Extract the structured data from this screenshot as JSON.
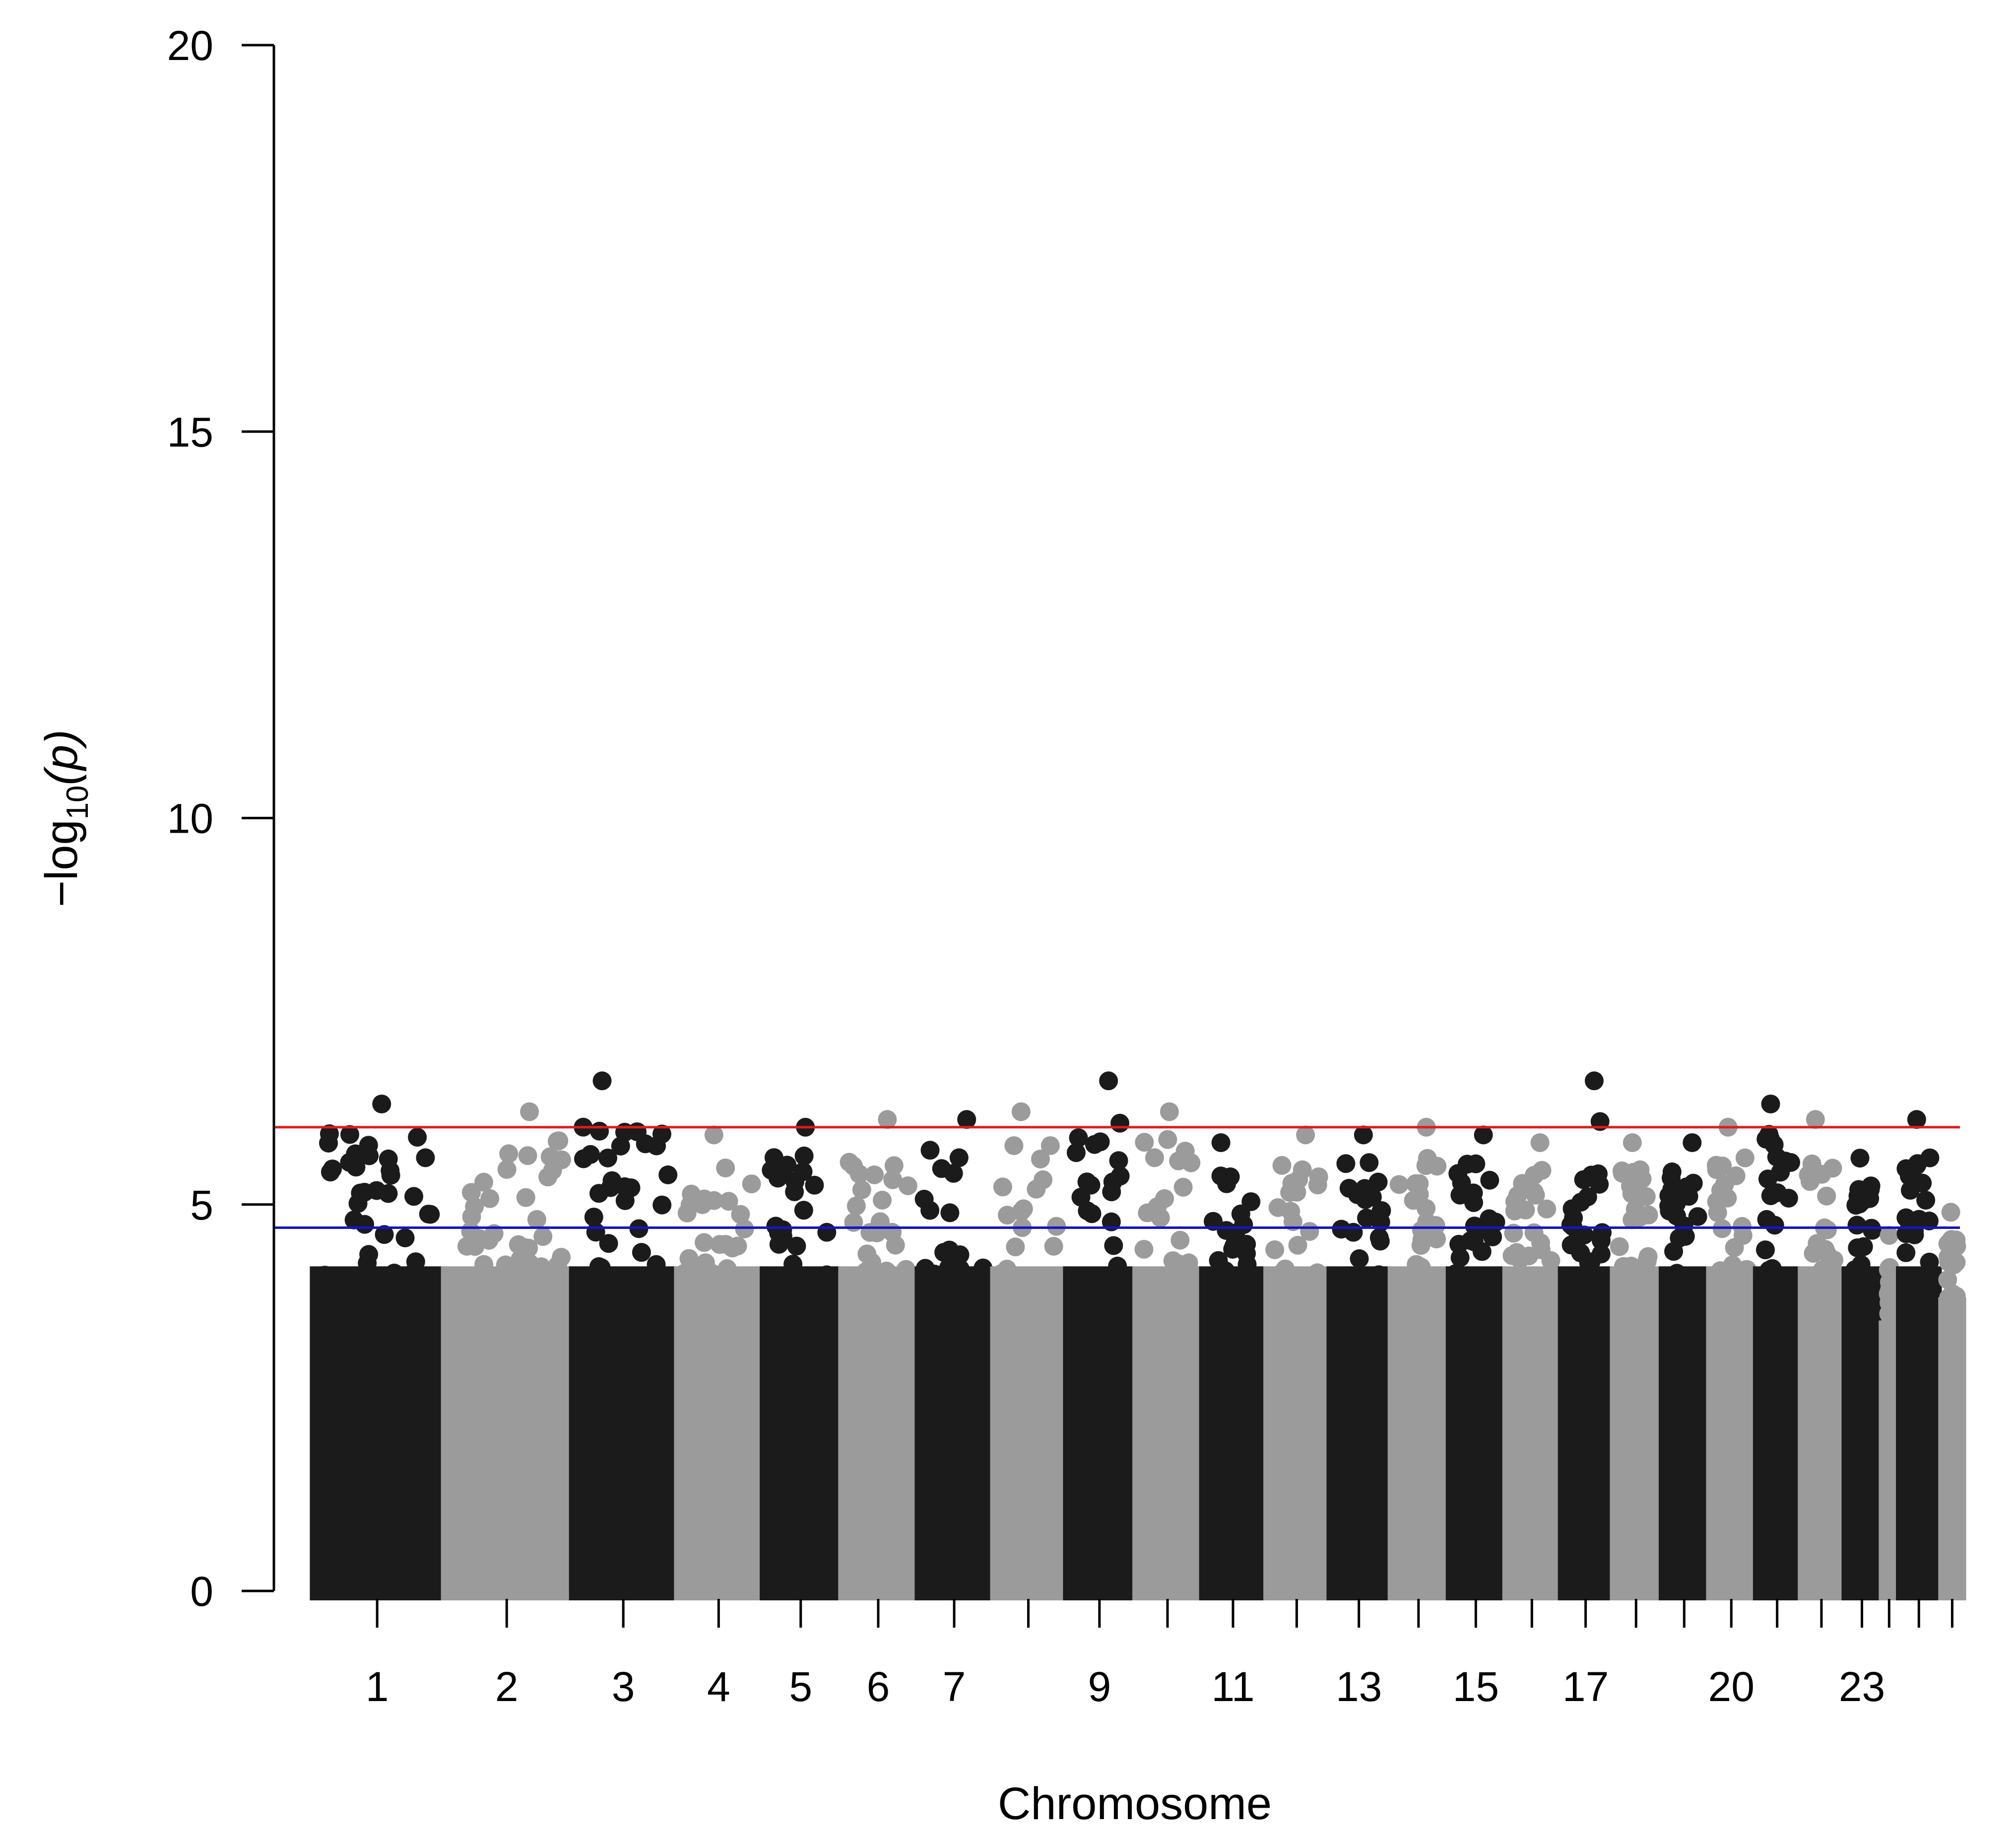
{
  "chart_data": {
    "type": "scatter",
    "title": "",
    "xlabel": "Chromosome",
    "ylabel_prefix": "−log",
    "ylabel_sub": "10",
    "ylabel_suffix": "(p)",
    "ylim": [
      0,
      20
    ],
    "y_ticks": [
      0,
      5,
      10,
      15,
      20
    ],
    "grid": false,
    "series_colors": [
      "#1b1b1b",
      "#9b9b9b"
    ],
    "chromosomes": [
      {
        "label": "1",
        "peak": 6.3
      },
      {
        "label": "2",
        "peak": 6.2
      },
      {
        "label": "3",
        "peak": 6.6
      },
      {
        "label": "4",
        "peak": 5.9
      },
      {
        "label": "5",
        "peak": 6.0
      },
      {
        "label": "6",
        "peak": 6.1
      },
      {
        "label": "7",
        "peak": 6.1
      },
      {
        "label": "",
        "peak": 6.2
      },
      {
        "label": "9",
        "peak": 6.6
      },
      {
        "label": "",
        "peak": 6.2
      },
      {
        "label": "11",
        "peak": 5.8
      },
      {
        "label": "",
        "peak": 5.9
      },
      {
        "label": "13",
        "peak": 5.9
      },
      {
        "label": "",
        "peak": 6.0
      },
      {
        "label": "15",
        "peak": 5.9
      },
      {
        "label": "",
        "peak": 5.8
      },
      {
        "label": "17",
        "peak": 6.6
      },
      {
        "label": "",
        "peak": 5.8
      },
      {
        "label": "",
        "peak": 5.8
      },
      {
        "label": "20",
        "peak": 6.0
      },
      {
        "label": "",
        "peak": 6.3
      },
      {
        "label": "",
        "peak": 6.1
      },
      {
        "label": "23",
        "peak": 5.6
      },
      {
        "label": "",
        "peak": 4.6
      },
      {
        "label": "",
        "peak": 6.1
      },
      {
        "label": "",
        "peak": 4.9
      }
    ],
    "threshold_lines": [
      {
        "value": 6.0,
        "color": "#e41a1c"
      },
      {
        "value": 4.7,
        "color": "#1414c8"
      }
    ]
  }
}
